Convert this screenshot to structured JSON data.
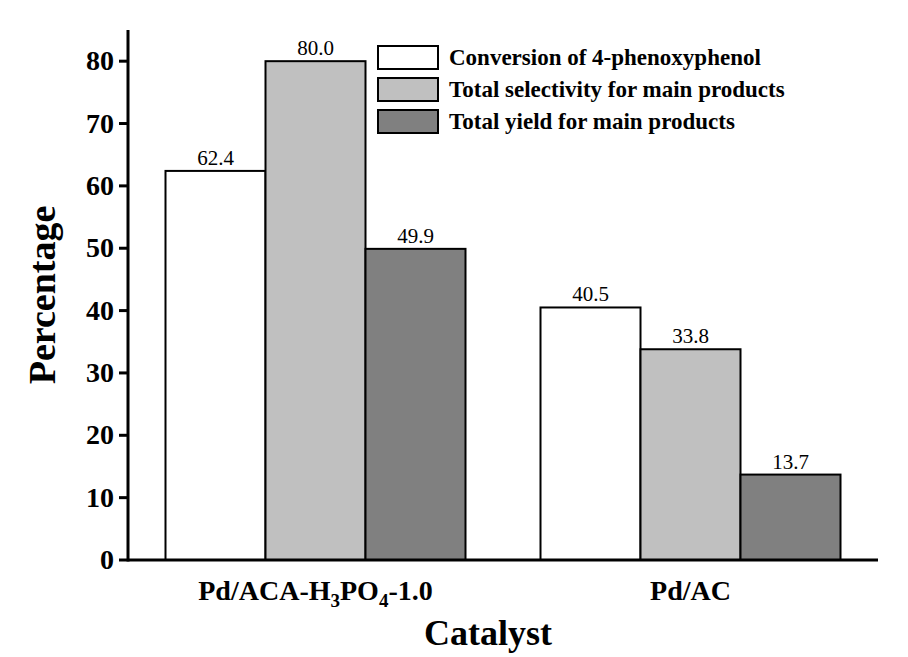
{
  "chart_data": {
    "type": "bar",
    "x_label": "Catalyst",
    "y_label": "Percentage",
    "categories": [
      "Pd/ACA-H3PO4-1.0",
      "Pd/AC"
    ],
    "series": [
      {
        "name": "Conversion of 4-phenoxyphenol",
        "color": "#ffffff",
        "values": [
          62.4,
          40.5
        ],
        "value_labels": [
          "62.4",
          "40.5"
        ]
      },
      {
        "name": "Total selectivity for main products",
        "color": "#c0c0c0",
        "values": [
          80.0,
          33.8
        ],
        "value_labels": [
          "80.0",
          "33.8"
        ]
      },
      {
        "name": "Total yield for main products",
        "color": "#808080",
        "values": [
          49.9,
          13.7
        ],
        "value_labels": [
          "49.9",
          "13.7"
        ]
      }
    ],
    "ylim": [
      0,
      85
    ],
    "yticks": [
      0,
      10,
      20,
      30,
      40,
      50,
      60,
      70,
      80
    ],
    "grid": false,
    "legend": "top-right",
    "data_labels": true
  }
}
